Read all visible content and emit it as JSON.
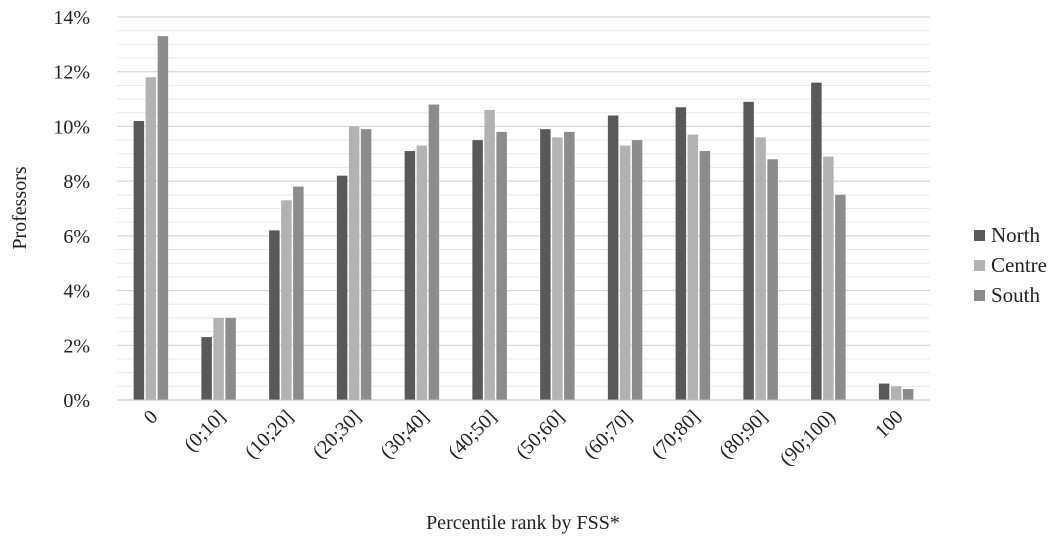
{
  "chart_data": {
    "type": "bar",
    "title": "",
    "xlabel": "Percentile rank by FSS*",
    "ylabel": "Professors",
    "ylim": [
      0,
      14
    ],
    "yticks": [
      0,
      2,
      4,
      6,
      8,
      10,
      12,
      14
    ],
    "ytick_labels": [
      "0%",
      "2%",
      "4%",
      "6%",
      "8%",
      "10%",
      "12%",
      "14%"
    ],
    "categories": [
      "0",
      "(0;10]",
      "(10;20]",
      "(20;30]",
      "(30;40]",
      "(40;50]",
      "(50;60]",
      "(60;70]",
      "(70;80]",
      "(80;90]",
      "(90;100)",
      "100"
    ],
    "series": [
      {
        "name": "North",
        "color": "#595959",
        "values": [
          10.2,
          2.3,
          6.2,
          8.2,
          9.1,
          9.5,
          9.9,
          10.4,
          10.7,
          10.9,
          11.6,
          0.6
        ]
      },
      {
        "name": "Centre",
        "color": "#b2b2b2",
        "values": [
          11.8,
          3.0,
          7.3,
          10.0,
          9.3,
          10.6,
          9.6,
          9.3,
          9.7,
          9.6,
          8.9,
          0.5
        ]
      },
      {
        "name": "South",
        "color": "#8c8c8c",
        "values": [
          13.3,
          3.0,
          7.8,
          9.9,
          10.8,
          9.8,
          9.8,
          9.5,
          9.1,
          8.8,
          7.5,
          0.4
        ]
      }
    ],
    "grid": true,
    "legend_position": "right"
  }
}
